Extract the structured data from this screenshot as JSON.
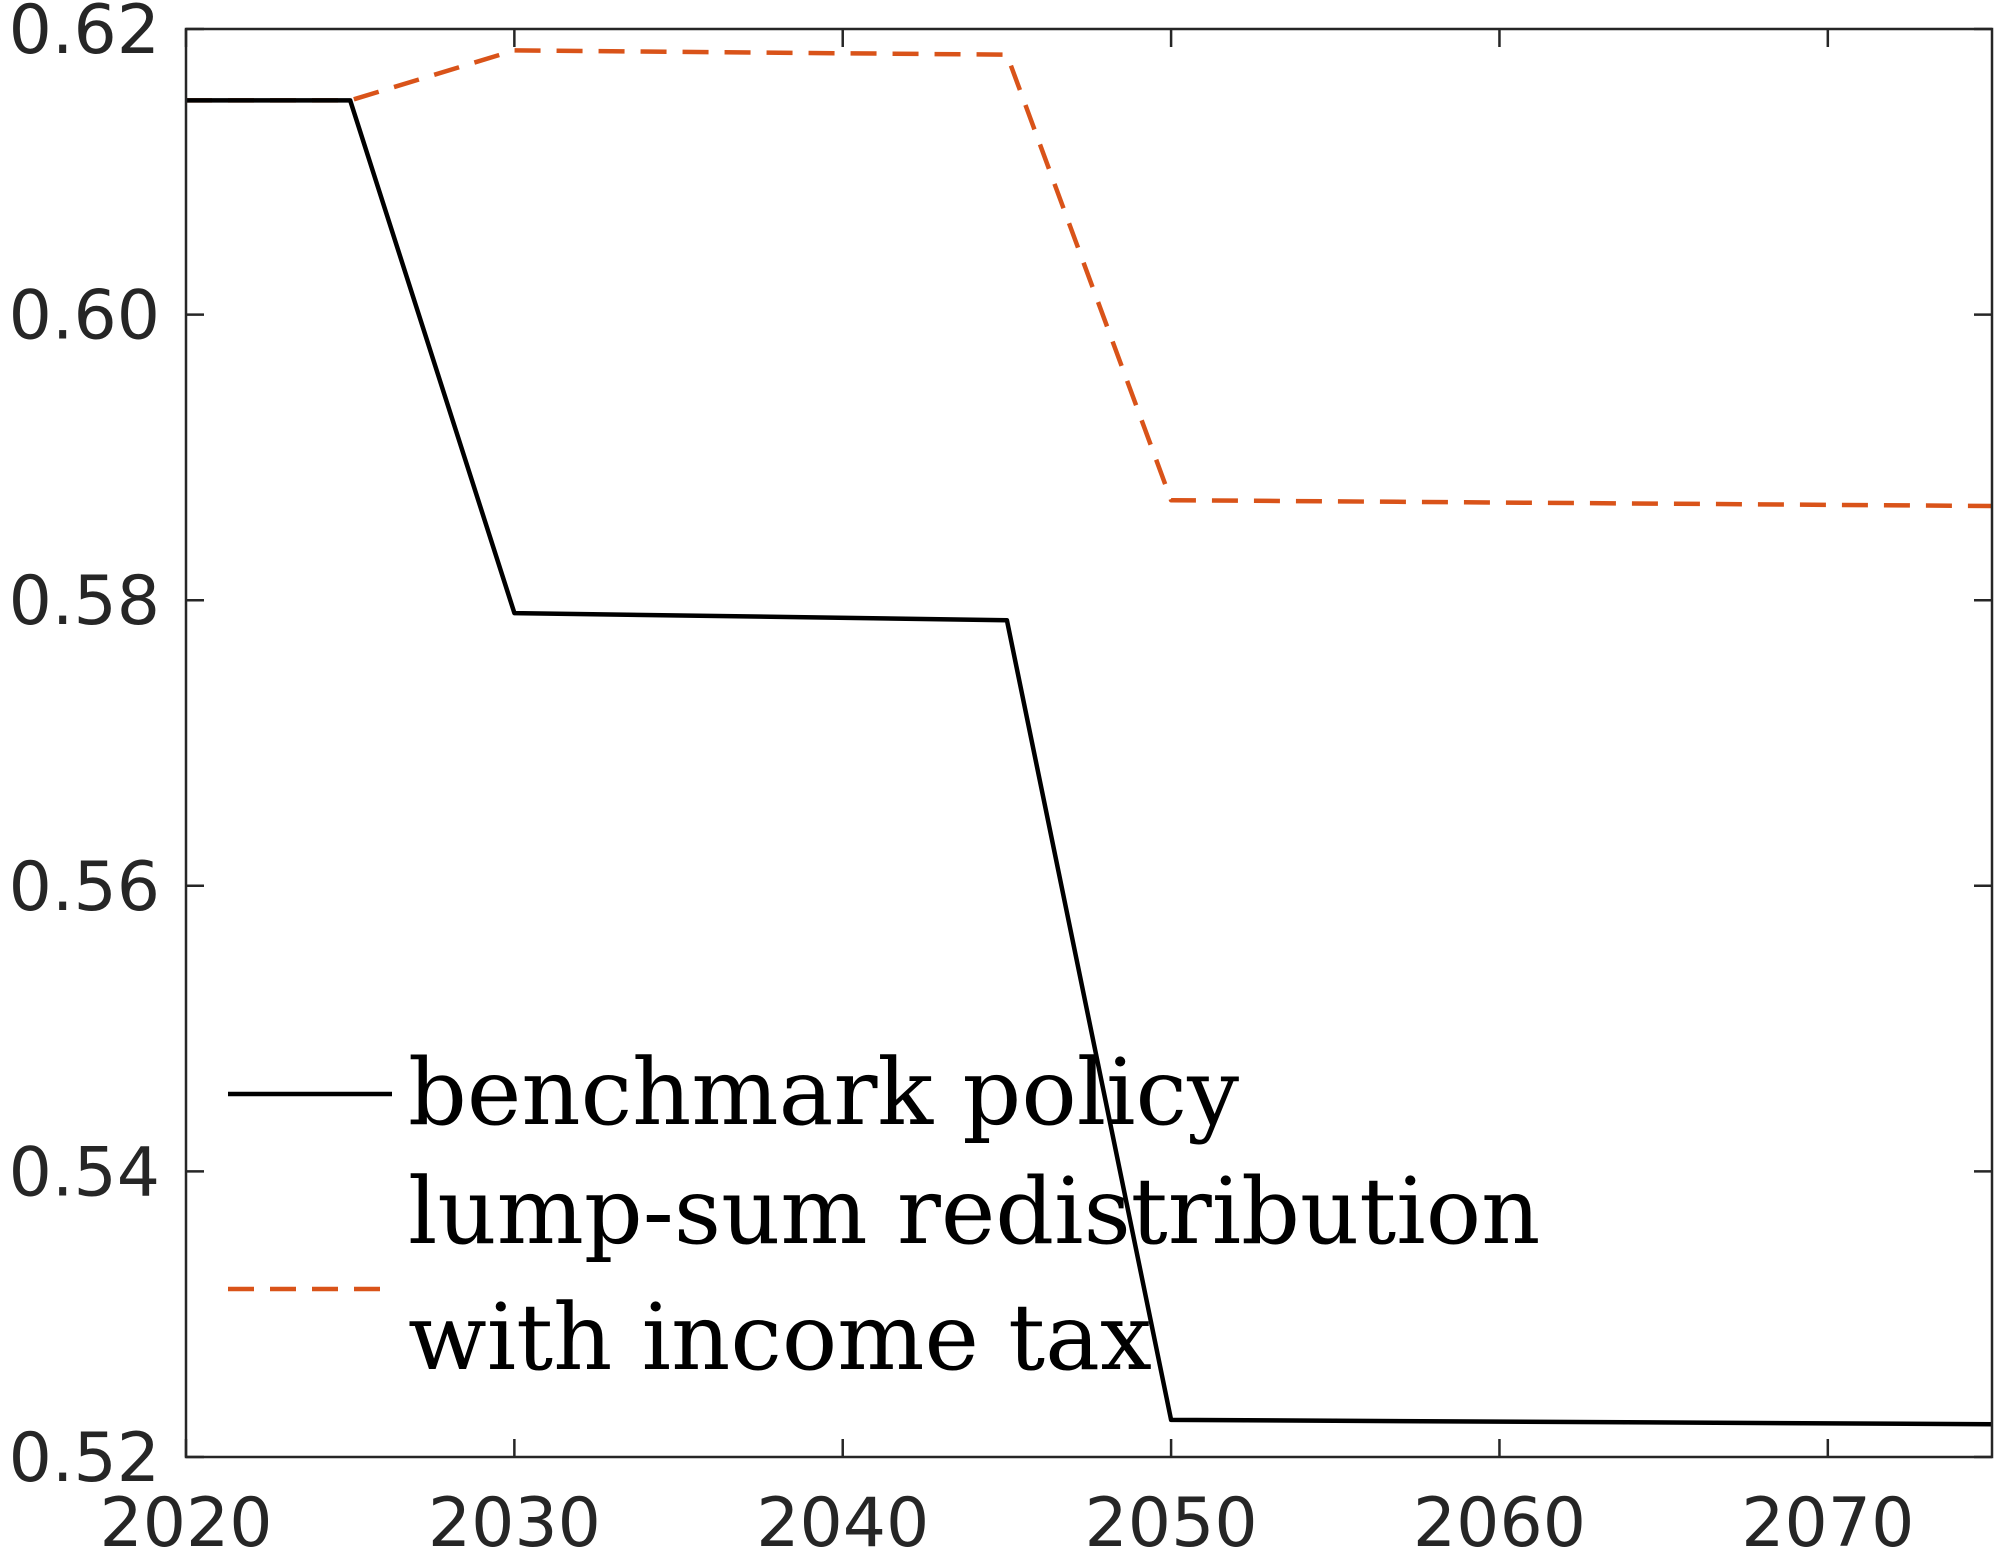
{
  "chart_data": {
    "type": "line",
    "title": "",
    "xlabel": "",
    "ylabel": "",
    "xlim": [
      2020,
      2075
    ],
    "ylim": [
      0.52,
      0.62
    ],
    "xticks": [
      "2020",
      "2030",
      "2040",
      "2050",
      "2060",
      "2070"
    ],
    "yticks": [
      "0.52",
      "0.54",
      "0.56",
      "0.58",
      "0.60",
      "0.62"
    ],
    "grid": false,
    "legend_position": "bottom-left",
    "series": [
      {
        "name": "benchmark policy",
        "style": "solid",
        "color": "#000000",
        "x": [
          2020,
          2025,
          2030,
          2045,
          2050,
          2075
        ],
        "y": [
          0.615,
          0.615,
          0.5791,
          0.5786,
          0.5226,
          0.5223
        ]
      },
      {
        "name": "lump-sum redistribution\nwith income tax",
        "legend_lines": [
          "lump-sum redistribution",
          "with income tax"
        ],
        "style": "dashed",
        "color": "#D95319",
        "x": [
          2020,
          2025,
          2030,
          2045,
          2050,
          2075
        ],
        "y": [
          0.615,
          0.615,
          0.6185,
          0.6182,
          0.587,
          0.5866
        ]
      }
    ]
  }
}
